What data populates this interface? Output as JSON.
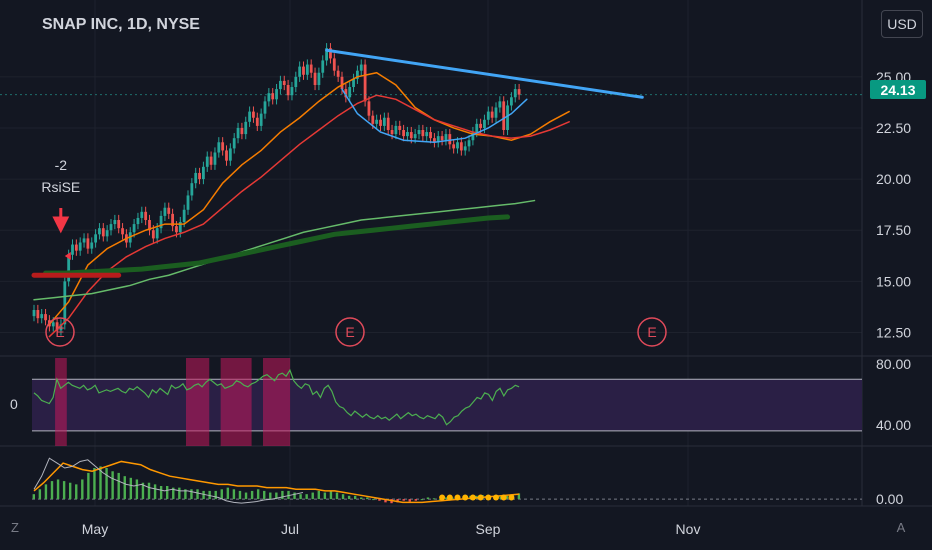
{
  "header": {
    "title": "SNAP INC, 1D, NYSE",
    "currency": "USD"
  },
  "annotations": {
    "signal_value": "-2",
    "signal_name": "RsiSE",
    "earnings_label": "E"
  },
  "last_price": "24.13",
  "indicator_value": "0",
  "corners": {
    "left": "Z",
    "right": "A"
  },
  "colors": {
    "up": "#26a69a",
    "down": "#ef5350",
    "ema_fast": "#f57c00",
    "ema_slow": "#e53935",
    "sma_long": "#66bb6a",
    "sma_thick": "#1b5e20",
    "trendline": "#42a5f5",
    "cup": "#42a5f5",
    "rsi": "#4caf50",
    "rsi_band": "#2a1f45"
  },
  "chart_data": [
    {
      "type": "candlestick",
      "title": "SNAP INC, 1D, NYSE",
      "x_ticks": [
        "May",
        "Jul",
        "Sep",
        "Nov"
      ],
      "y_ticks": [
        "12.50",
        "15.00",
        "17.50",
        "20.00",
        "22.50",
        "25.00"
      ],
      "ylim": [
        11.4,
        26.8
      ],
      "last_value": 24.13,
      "earnings_markers": [
        "E",
        "E",
        "E"
      ],
      "series": [
        {
          "kind": "candles",
          "close": [
            13.6,
            13.2,
            13.4,
            13.1,
            12.8,
            13.0,
            12.6,
            12.9,
            15.0,
            16.3,
            16.8,
            16.5,
            16.9,
            17.1,
            16.6,
            16.9,
            17.3,
            17.6,
            17.2,
            17.5,
            17.8,
            18.0,
            17.6,
            17.3,
            16.9,
            17.4,
            17.8,
            18.1,
            18.4,
            18.0,
            17.5,
            17.1,
            17.6,
            18.2,
            18.6,
            18.3,
            17.7,
            17.4,
            17.9,
            18.5,
            19.2,
            19.8,
            20.3,
            20.0,
            20.6,
            21.1,
            20.7,
            21.3,
            21.8,
            21.4,
            20.9,
            21.5,
            22.0,
            22.5,
            22.2,
            22.8,
            23.3,
            23.0,
            22.6,
            23.2,
            23.8,
            24.2,
            23.9,
            24.4,
            24.8,
            24.6,
            24.1,
            24.5,
            25.0,
            25.5,
            25.1,
            25.6,
            25.2,
            24.6,
            25.2,
            25.8,
            26.4,
            25.9,
            25.3,
            25.0,
            24.4,
            24.0,
            24.5,
            24.9,
            25.3,
            25.6,
            23.8,
            23.1,
            22.7,
            22.9,
            22.6,
            23.0,
            22.4,
            22.2,
            22.6,
            22.4,
            22.1,
            22.3,
            22.0,
            22.2,
            22.4,
            22.1,
            22.3,
            22.0,
            21.8,
            22.1,
            21.9,
            22.2,
            21.7,
            21.5,
            21.8,
            21.4,
            21.6,
            21.9,
            22.3,
            22.7,
            22.5,
            22.9,
            23.3,
            23.0,
            23.5,
            23.8,
            22.4,
            23.6,
            24.0,
            24.4,
            24.13
          ]
        },
        {
          "name": "",
          "kind": "ema_fast",
          "start": 4,
          "step": 5,
          "values": [
            12.9,
            14.0,
            15.8,
            16.6,
            17.1,
            17.5,
            17.8,
            17.8,
            18.5,
            19.8,
            20.7,
            21.4,
            22.3,
            23.0,
            23.8,
            24.5,
            25.0,
            25.2,
            24.6,
            23.5,
            22.9,
            22.5,
            22.2,
            22.1,
            21.9,
            22.2,
            22.8,
            23.3
          ]
        },
        {
          "name": "",
          "kind": "ema_slow",
          "start": 4,
          "step": 5,
          "values": [
            12.3,
            13.2,
            14.5,
            15.5,
            16.2,
            16.7,
            17.1,
            17.4,
            17.8,
            18.6,
            19.4,
            20.1,
            20.9,
            21.7,
            22.4,
            23.1,
            23.7,
            24.1,
            23.9,
            23.4,
            22.9,
            22.6,
            22.3,
            22.1,
            22.0,
            22.1,
            22.4,
            22.8
          ]
        },
        {
          "name": "",
          "kind": "sma_long",
          "start": 0,
          "step": 5,
          "values": [
            14.1,
            14.2,
            14.3,
            14.4,
            14.6,
            14.8,
            15.1,
            15.3,
            15.6,
            15.9,
            16.2,
            16.5,
            16.8,
            17.1,
            17.4,
            17.6,
            17.8,
            18.0,
            18.1,
            18.2,
            18.3,
            18.4,
            18.5,
            18.6,
            18.7,
            18.8,
            18.95
          ]
        },
        {
          "name": "",
          "kind": "sma_thick",
          "start": 3,
          "step": 5,
          "values": [
            15.4,
            15.4,
            15.45,
            15.5,
            15.55,
            15.6,
            15.7,
            15.8,
            15.9,
            16.1,
            16.3,
            16.5,
            16.7,
            16.9,
            17.1,
            17.3,
            17.4,
            17.5,
            17.6,
            17.7,
            17.8,
            17.9,
            18.0,
            18.1,
            18.15
          ]
        },
        {
          "name": "",
          "kind": "resistance_line",
          "points": [
            [
              76,
              26.3
            ],
            [
              158,
              24.0
            ]
          ]
        },
        {
          "name": "",
          "kind": "cup",
          "points": [
            [
              80,
              24.4
            ],
            [
              84,
              23.2
            ],
            [
              90,
              22.3
            ],
            [
              96,
              21.9
            ],
            [
              104,
              21.8
            ],
            [
              112,
              22.0
            ],
            [
              118,
              22.5
            ],
            [
              124,
              23.2
            ],
            [
              128,
              23.9
            ]
          ]
        },
        {
          "name": "",
          "kind": "support_red",
          "points": [
            [
              0,
              15.3
            ],
            [
              22,
              15.3
            ]
          ]
        }
      ]
    },
    {
      "type": "line",
      "name": "",
      "y_ticks": [
        "40.00",
        "80.00"
      ],
      "band": [
        36,
        70
      ],
      "ylim": [
        26,
        84
      ],
      "values": [
        61,
        59,
        56,
        55,
        54,
        58,
        70,
        64,
        66,
        68,
        66,
        65,
        64,
        66,
        63,
        64,
        66,
        61,
        62,
        63,
        62,
        63,
        64,
        62,
        61,
        64,
        63,
        65,
        63,
        61,
        58,
        63,
        61,
        64,
        62,
        60,
        66,
        64,
        65,
        67,
        63,
        64,
        66,
        67,
        65,
        68,
        70,
        68,
        66,
        67,
        64,
        65,
        66,
        69,
        68,
        66,
        65,
        67,
        68,
        70,
        72,
        73,
        71,
        69,
        73,
        74,
        72,
        76,
        69,
        66,
        64,
        67,
        66,
        60,
        62,
        58,
        64,
        66,
        62,
        55,
        52,
        51,
        48,
        46,
        49,
        47,
        45,
        47,
        45,
        44,
        46,
        44,
        45,
        43,
        45,
        47,
        44,
        46,
        48,
        46,
        47,
        45,
        44,
        46,
        45,
        44,
        47,
        45,
        40,
        42,
        45,
        46,
        49,
        51,
        52,
        55,
        58,
        57,
        61,
        60,
        56,
        62,
        64,
        59,
        63,
        64,
        66,
        65
      ],
      "highlight_ranges": [
        [
          6,
          8
        ],
        [
          40,
          45
        ],
        [
          49,
          56
        ],
        [
          60,
          66
        ]
      ]
    },
    {
      "type": "histogram",
      "y_ticks": [
        "0.00"
      ],
      "ylim": [
        -0.3,
        3.0
      ],
      "bars": [
        0.3,
        0.6,
        0.9,
        1.1,
        1.2,
        1.1,
        1.0,
        0.9,
        1.2,
        1.6,
        1.9,
        2.0,
        1.9,
        1.7,
        1.6,
        1.4,
        1.3,
        1.2,
        1.0,
        1.0,
        0.9,
        0.8,
        0.8,
        0.7,
        0.7,
        0.6,
        0.6,
        0.6,
        0.5,
        0.5,
        0.5,
        0.6,
        0.7,
        0.6,
        0.5,
        0.4,
        0.5,
        0.6,
        0.5,
        0.4,
        0.4,
        0.5,
        0.5,
        0.4,
        0.3,
        0.3,
        0.4,
        0.5,
        0.4,
        0.5,
        0.4,
        0.3,
        0.2,
        0.2,
        0.1,
        0.1,
        0.0,
        -0.1,
        -0.2,
        -0.25,
        -0.2,
        -0.1,
        -0.15,
        -0.1,
        0.0,
        0.1,
        0.05,
        0.0,
        0.1,
        0.1,
        0.15,
        0.1,
        0.2,
        0.2,
        0.25,
        0.2,
        0.1,
        0.15,
        0.2,
        0.3,
        0.35
      ],
      "line_values": [
        0.5,
        1.0,
        1.6,
        2.2,
        2.0,
        1.8,
        1.7,
        1.9,
        2.1,
        2.3,
        2.2,
        2.1,
        1.8,
        1.6,
        1.4,
        1.3,
        1.2,
        1.1,
        1.0,
        0.9,
        0.9,
        0.8,
        0.8,
        0.8,
        0.7,
        0.7,
        0.7,
        0.6,
        0.6,
        0.6,
        0.5,
        0.5,
        0.4,
        0.3,
        0.2,
        0.1,
        0.0,
        -0.1,
        -0.2,
        -0.2,
        -0.2,
        -0.15,
        -0.1,
        -0.05,
        0.0,
        0.05,
        0.1,
        0.15,
        0.2,
        0.25,
        0.3
      ],
      "white_values": [
        0.6,
        1.4,
        2.5,
        2.2,
        1.9,
        2.0,
        2.3,
        2.4,
        2.0,
        1.6,
        1.3,
        1.1,
        0.9,
        0.8,
        0.9,
        0.7,
        0.6,
        0.5,
        0.6,
        0.5,
        0.5,
        0.4,
        0.3,
        0.2,
        0.1,
        -0.1,
        -0.2,
        -0.25,
        -0.2,
        -0.15,
        -0.05,
        0.0,
        0.1,
        0.2,
        0.3,
        0.4
      ]
    }
  ]
}
